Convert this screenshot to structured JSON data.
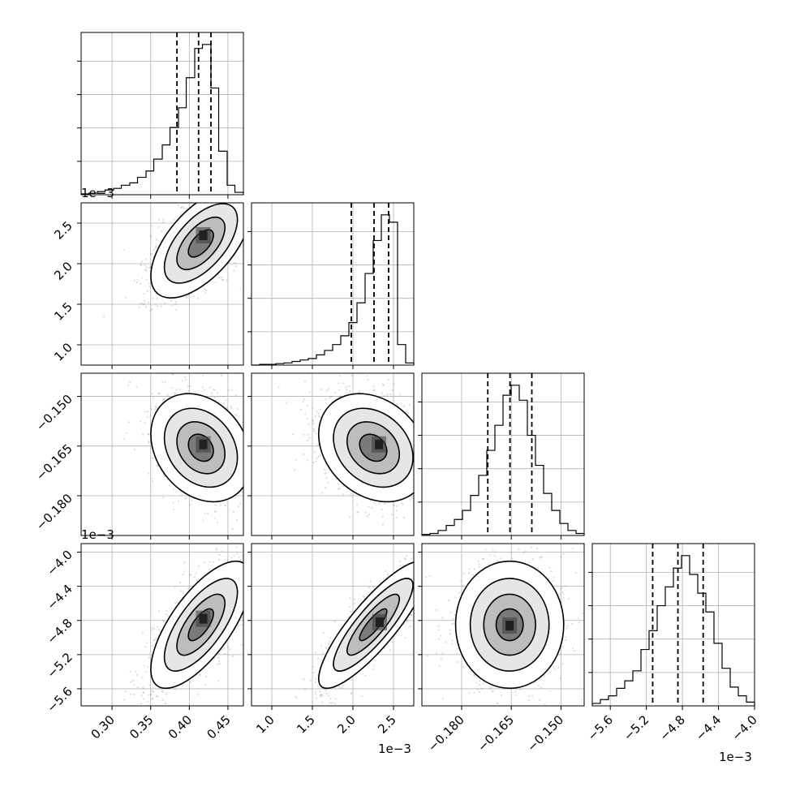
{
  "figure": {
    "kind": "corner-plot"
  },
  "chart_data": [
    {
      "type": "histogram",
      "panel": "p00",
      "parameter_index": 0,
      "x_range": [
        0.00026,
        0.00047
      ],
      "x_ticks": [
        0.0003,
        0.00035,
        0.0004,
        0.00045
      ],
      "bin_edges": [
        0.00026,
        0.00027,
        0.000281,
        0.000291,
        0.000302,
        0.000312,
        0.000323,
        0.000333,
        0.000344,
        0.000354,
        0.000365,
        0.000375,
        0.000386,
        0.000396,
        0.000407,
        0.000417,
        0.000428,
        0.000438,
        0.000449,
        0.000459,
        0.00047
      ],
      "counts": [
        1,
        2,
        4,
        6,
        8,
        12,
        15,
        22,
        30,
        45,
        63,
        85,
        110,
        148,
        185,
        190,
        135,
        55,
        12,
        3
      ],
      "quantiles": [
        0.000384,
        0.000412,
        0.000428
      ],
      "grid": true
    },
    {
      "type": "histogram",
      "panel": "p11",
      "parameter_index": 1,
      "x_range": [
        0.00075,
        0.00275
      ],
      "x_ticks": [
        0.001,
        0.0015,
        0.002,
        0.0025
      ],
      "x_tick_labels": [
        "1.0",
        "1.5",
        "2.0",
        "2.5"
      ],
      "x_offset_label": "1e−3",
      "bin_edges": [
        0.00075,
        0.00085,
        0.00095,
        0.00105,
        0.00115,
        0.00125,
        0.00135,
        0.00145,
        0.00155,
        0.00165,
        0.00175,
        0.00185,
        0.00195,
        0.00205,
        0.00215,
        0.00225,
        0.00235,
        0.00245,
        0.00255,
        0.00265,
        0.00275
      ],
      "counts": [
        0,
        1,
        1,
        2,
        3,
        5,
        7,
        9,
        14,
        20,
        28,
        40,
        58,
        85,
        125,
        170,
        205,
        195,
        28,
        3
      ],
      "quantiles": [
        0.00198,
        0.00226,
        0.00244
      ],
      "grid": true
    },
    {
      "type": "histogram",
      "panel": "p22",
      "parameter_index": 2,
      "x_range": [
        -0.192,
        -0.143
      ],
      "x_ticks": [
        -0.18,
        -0.165,
        -0.15
      ],
      "x_tick_labels": [
        "−0.180",
        "−0.165",
        "−0.150"
      ],
      "bin_edges": [
        -0.192,
        -0.18955,
        -0.1871,
        -0.18465,
        -0.1822,
        -0.17975,
        -0.1773,
        -0.17485,
        -0.1724,
        -0.16995,
        -0.1675,
        -0.16505,
        -0.1626,
        -0.16015,
        -0.1577,
        -0.15525,
        -0.1528,
        -0.15035,
        -0.1479,
        -0.14545,
        -0.143
      ],
      "counts": [
        1,
        2,
        5,
        10,
        16,
        25,
        40,
        60,
        85,
        110,
        140,
        150,
        135,
        100,
        70,
        42,
        25,
        12,
        5,
        2
      ],
      "quantiles": [
        -0.1721,
        -0.1654,
        -0.1588
      ],
      "grid": true
    },
    {
      "type": "histogram",
      "panel": "p33",
      "parameter_index": 3,
      "x_range": [
        -0.0058,
        -0.004
      ],
      "x_ticks": [
        -0.0056,
        -0.0052,
        -0.0048,
        -0.0044,
        -0.004
      ],
      "x_tick_labels": [
        "−5.6",
        "−5.2",
        "−4.8",
        "−4.4",
        "−4.0"
      ],
      "x_offset_label": "1e−3",
      "bin_edges": [
        -0.0058,
        -0.00571,
        -0.00562,
        -0.00553,
        -0.00544,
        -0.00535,
        -0.00526,
        -0.00517,
        -0.00508,
        -0.00499,
        -0.0049,
        -0.00481,
        -0.00472,
        -0.00463,
        -0.00454,
        -0.00445,
        -0.00436,
        -0.00427,
        -0.00418,
        -0.00409,
        -0.004
      ],
      "counts": [
        2,
        5,
        8,
        14,
        20,
        28,
        45,
        60,
        80,
        95,
        110,
        120,
        105,
        90,
        75,
        50,
        30,
        15,
        8,
        3
      ],
      "quantiles": [
        -0.00513,
        -0.00485,
        -0.00457
      ],
      "grid": true
    },
    {
      "type": "scatter-density",
      "panel": "p10",
      "x_param": 0,
      "y_param": 1,
      "x_range": [
        0.00026,
        0.00047
      ],
      "y_range": [
        0.00075,
        0.00275
      ],
      "y_ticks": [
        0.001,
        0.0015,
        0.002,
        0.0025
      ],
      "y_tick_labels": [
        "1.0",
        "1.5",
        "2.0",
        "2.5"
      ],
      "y_offset_label": "1e−3",
      "mean": [
        0.000415,
        0.00225
      ],
      "sd": [
        2.7e-05,
        0.00028
      ],
      "corr": 0.6,
      "peak": [
        0.000418,
        0.00235
      ],
      "grid": true
    },
    {
      "type": "scatter-density",
      "panel": "p20",
      "x_param": 0,
      "y_param": 2,
      "x_range": [
        0.00026,
        0.00047
      ],
      "y_range": [
        -0.192,
        -0.143
      ],
      "y_ticks": [
        -0.18,
        -0.165,
        -0.15
      ],
      "y_tick_labels": [
        "−0.180",
        "−0.165",
        "−0.150"
      ],
      "mean": [
        0.000415,
        -0.1655
      ],
      "sd": [
        2.7e-05,
        0.0068
      ],
      "corr": -0.25,
      "peak": [
        0.000418,
        -0.1645
      ],
      "grid": true
    },
    {
      "type": "scatter-density",
      "panel": "p21",
      "x_param": 1,
      "y_param": 2,
      "x_range": [
        0.00075,
        0.00275
      ],
      "y_range": [
        -0.192,
        -0.143
      ],
      "mean": [
        0.00225,
        -0.1655
      ],
      "sd": [
        0.00028,
        0.0068
      ],
      "corr": -0.25,
      "peak": [
        0.00232,
        -0.1645
      ],
      "grid": true
    },
    {
      "type": "scatter-density",
      "panel": "p30",
      "x_param": 0,
      "y_param": 3,
      "x_range": [
        0.00026,
        0.00047
      ],
      "y_range": [
        -0.0058,
        -0.0039
      ],
      "x_ticks": [
        0.0003,
        0.00035,
        0.0004,
        0.00045
      ],
      "x_tick_labels": [
        "0.30",
        "0.35",
        "0.40",
        "0.45"
      ],
      "y_ticks": [
        -0.0056,
        -0.0052,
        -0.0048,
        -0.0044,
        -0.004
      ],
      "y_tick_labels": [
        "−5.6",
        "−5.2",
        "−4.8",
        "−4.4",
        "−4.0"
      ],
      "y_offset_label": "1e−3",
      "mean": [
        0.000415,
        -0.00485
      ],
      "sd": [
        2.7e-05,
        0.00031
      ],
      "corr": 0.7,
      "peak": [
        0.000418,
        -0.00478
      ],
      "grid": true
    },
    {
      "type": "scatter-density",
      "panel": "p31",
      "x_param": 1,
      "y_param": 3,
      "x_range": [
        0.00075,
        0.00275
      ],
      "y_range": [
        -0.0058,
        -0.0039
      ],
      "x_ticks": [
        0.001,
        0.0015,
        0.002,
        0.0025
      ],
      "x_tick_labels": [
        "1.0",
        "1.5",
        "2.0",
        "2.5"
      ],
      "mean": [
        0.00225,
        -0.00485
      ],
      "sd": [
        0.00028,
        0.00031
      ],
      "corr": 0.85,
      "peak": [
        0.00233,
        -0.00482
      ],
      "grid": true
    },
    {
      "type": "scatter-density",
      "panel": "p32",
      "x_param": 2,
      "y_param": 3,
      "x_range": [
        -0.192,
        -0.143
      ],
      "y_range": [
        -0.0058,
        -0.0039
      ],
      "x_ticks": [
        -0.18,
        -0.165,
        -0.15
      ],
      "x_tick_labels": [
        "−0.180",
        "−0.165",
        "−0.150"
      ],
      "mean": [
        -0.1655,
        -0.00485
      ],
      "sd": [
        0.0068,
        0.00031
      ],
      "corr": 0.0,
      "peak": [
        -0.1655,
        -0.00486
      ],
      "grid": true
    }
  ]
}
